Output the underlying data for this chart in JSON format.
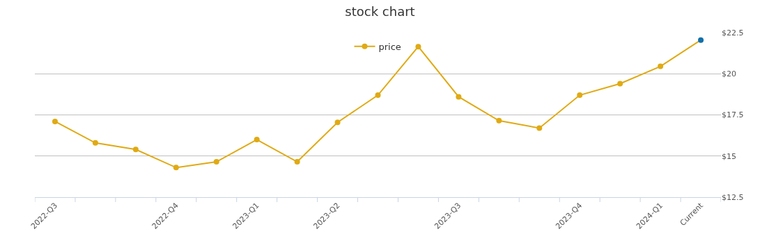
{
  "chart_data": {
    "type": "line",
    "title": "stock chart",
    "categories": [
      "2022-Q3",
      null,
      null,
      "2022-Q4",
      null,
      "2023-Q1",
      null,
      "2023-Q2",
      null,
      null,
      "2023-Q3",
      null,
      null,
      "2023-Q4",
      null,
      "2024-Q1",
      "Current"
    ],
    "series": [
      {
        "name": "price",
        "color": "#e0aa14",
        "colors": [
          "#e0aa14",
          "#e0aa14",
          "#e0aa14",
          "#e0aa14",
          "#e0aa14",
          "#e0aa14",
          "#e0aa14",
          "#e0aa14",
          "#e0aa14",
          "#e0aa14",
          "#e0aa14",
          "#e0aa14",
          "#e0aa14",
          "#e0aa14",
          "#e0aa14",
          "#e0aa14",
          "#1070aa"
        ],
        "values": [
          17.1,
          15.8,
          15.4,
          14.3,
          14.65,
          16.0,
          14.65,
          17.05,
          18.7,
          21.65,
          18.6,
          17.15,
          16.7,
          18.7,
          19.4,
          20.45,
          22.05
        ]
      }
    ],
    "ylim": [
      12.5,
      22.5
    ],
    "yticks": [
      {
        "value": 12.5,
        "label": "$12.5"
      },
      {
        "value": 15,
        "label": "$15"
      },
      {
        "value": 17.5,
        "label": "$17.5"
      },
      {
        "value": 20,
        "label": "$20"
      },
      {
        "value": 22.5,
        "label": "$22.5"
      }
    ],
    "grid": "y",
    "legend": "top",
    "marker": "circle",
    "line_style": "solid"
  }
}
